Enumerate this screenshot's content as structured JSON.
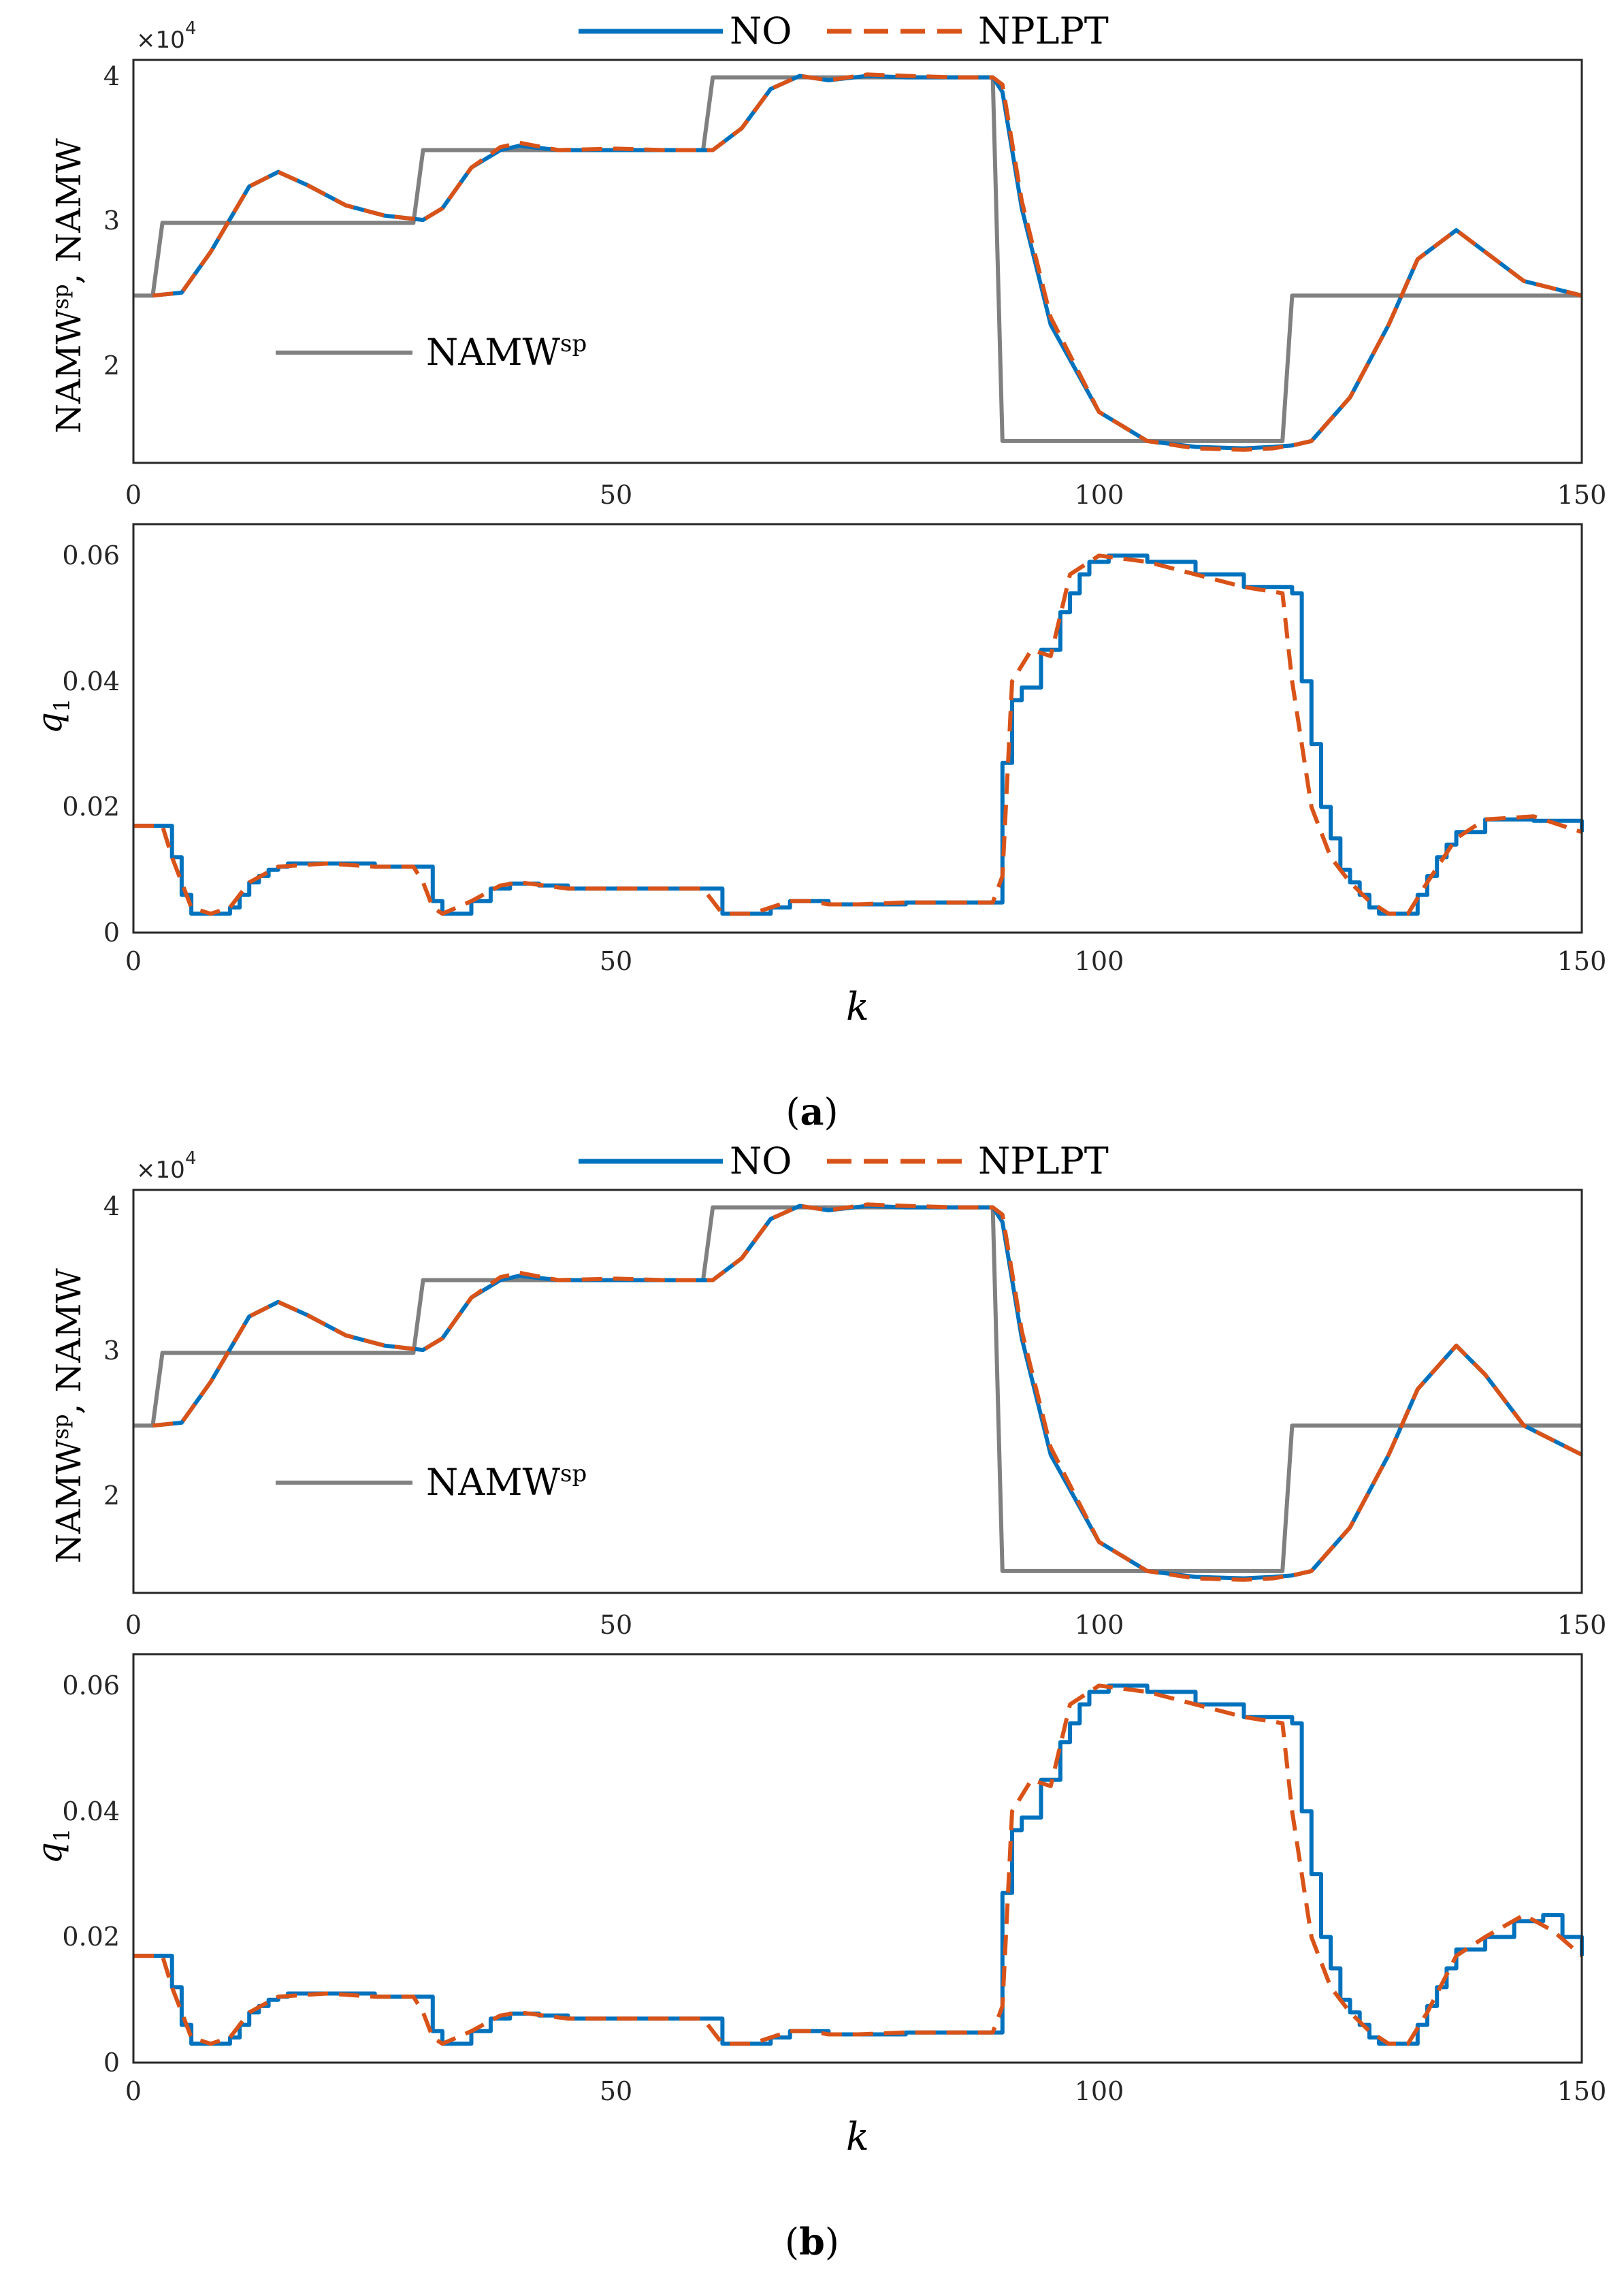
{
  "colors": {
    "no": "#0072BD",
    "nplpt": "#D95319",
    "sp": "#808080",
    "axis": "#262626"
  },
  "legend": {
    "no": "NO",
    "nplpt": "NPLPT"
  },
  "sp_legend": {
    "main": "NAMW",
    "sup": "sp"
  },
  "ylabels": {
    "top_a": "NAMW",
    "top_sup": "sp",
    "top_b": ", NAMW",
    "bottom_main": "q",
    "bottom_sub": "1"
  },
  "xlabel": "k",
  "multiplier": {
    "text": "×10",
    "exp": "4"
  },
  "captions": {
    "a": {
      "open": "(",
      "letter": "a",
      "close": ")"
    },
    "b": {
      "open": "(",
      "letter": "b",
      "close": ")"
    }
  },
  "ticks": {
    "x": [
      "0",
      "50",
      "100",
      "150"
    ],
    "y_top": [
      "2",
      "3",
      "4"
    ],
    "y_bottom": [
      "0",
      "0.02",
      "0.04",
      "0.06"
    ]
  },
  "chart_data": [
    {
      "type": "line",
      "panel": "a-top",
      "xlabel": "",
      "ylabel": "NAMW^sp, NAMW",
      "xlim": [
        0,
        150
      ],
      "ylim": [
        1.35,
        4.12
      ],
      "y_multiplier": "×10^4",
      "series": [
        {
          "name": "NAMW^sp",
          "style": "step",
          "x": [
            0,
            2,
            3,
            29,
            30,
            59,
            60,
            89,
            90,
            119,
            120,
            150
          ],
          "values": [
            2.5,
            2.5,
            3.0,
            3.0,
            3.5,
            3.5,
            4.0,
            4.0,
            1.5,
            1.5,
            2.5,
            2.5
          ]
        },
        {
          "name": "NO",
          "x": [
            2,
            5,
            8,
            12,
            15,
            18,
            22,
            26,
            30,
            32,
            35,
            38,
            40,
            44,
            50,
            55,
            60,
            63,
            66,
            69,
            72,
            76,
            80,
            85,
            88,
            89,
            90,
            92,
            95,
            100,
            105,
            110,
            115,
            118,
            120,
            122,
            126,
            130,
            133,
            137,
            140,
            144,
            150
          ],
          "values": [
            2.5,
            2.52,
            2.8,
            3.25,
            3.35,
            3.26,
            3.12,
            3.05,
            3.02,
            3.1,
            3.38,
            3.5,
            3.53,
            3.5,
            3.5,
            3.5,
            3.5,
            3.65,
            3.92,
            4.01,
            3.98,
            4.01,
            4.0,
            4.0,
            4.0,
            4.0,
            3.9,
            3.1,
            2.3,
            1.7,
            1.5,
            1.46,
            1.45,
            1.46,
            1.47,
            1.5,
            1.8,
            2.3,
            2.75,
            2.95,
            2.8,
            2.6,
            2.5
          ]
        },
        {
          "name": "NPLPT",
          "x": [
            2,
            5,
            8,
            12,
            15,
            18,
            22,
            26,
            30,
            32,
            35,
            38,
            40,
            44,
            50,
            55,
            60,
            63,
            66,
            69,
            72,
            76,
            80,
            85,
            88,
            89,
            90,
            92,
            95,
            100,
            105,
            110,
            115,
            118,
            120,
            122,
            126,
            130,
            133,
            137,
            140,
            144,
            150
          ],
          "values": [
            2.5,
            2.52,
            2.8,
            3.25,
            3.35,
            3.26,
            3.12,
            3.05,
            3.02,
            3.1,
            3.38,
            3.52,
            3.55,
            3.5,
            3.51,
            3.5,
            3.5,
            3.65,
            3.92,
            4.01,
            3.98,
            4.02,
            4.01,
            4.0,
            4.0,
            4.0,
            3.95,
            3.15,
            2.35,
            1.7,
            1.5,
            1.45,
            1.44,
            1.45,
            1.47,
            1.5,
            1.8,
            2.3,
            2.75,
            2.95,
            2.8,
            2.6,
            2.5
          ]
        }
      ]
    },
    {
      "type": "line",
      "panel": "a-bottom",
      "xlabel": "k",
      "ylabel": "q1",
      "xlim": [
        0,
        150
      ],
      "ylim": [
        0,
        0.065
      ],
      "series": [
        {
          "name": "NO",
          "style": "step",
          "x": [
            0,
            4,
            5,
            6,
            9,
            10,
            11,
            12,
            13,
            14,
            15,
            16,
            18,
            22,
            25,
            30,
            31,
            32,
            33,
            35,
            37,
            39,
            42,
            45,
            50,
            55,
            60,
            61,
            62,
            64,
            66,
            68,
            70,
            72,
            75,
            80,
            85,
            90,
            91,
            92,
            94,
            96,
            97,
            98,
            99,
            101,
            105,
            110,
            115,
            120,
            121,
            122,
            123,
            124,
            125,
            126,
            127,
            128,
            129,
            130,
            132,
            133,
            134,
            135,
            136,
            137,
            140,
            145,
            150
          ],
          "values": [
            0.017,
            0.012,
            0.006,
            0.003,
            0.003,
            0.004,
            0.006,
            0.008,
            0.009,
            0.01,
            0.0105,
            0.011,
            0.011,
            0.011,
            0.0105,
            0.0105,
            0.005,
            0.003,
            0.003,
            0.005,
            0.007,
            0.0078,
            0.0075,
            0.007,
            0.007,
            0.007,
            0.007,
            0.003,
            0.003,
            0.003,
            0.004,
            0.005,
            0.005,
            0.0045,
            0.0045,
            0.0048,
            0.0048,
            0.027,
            0.037,
            0.039,
            0.045,
            0.051,
            0.054,
            0.057,
            0.059,
            0.06,
            0.059,
            0.057,
            0.055,
            0.054,
            0.04,
            0.03,
            0.02,
            0.015,
            0.01,
            0.008,
            0.006,
            0.004,
            0.003,
            0.003,
            0.003,
            0.006,
            0.009,
            0.012,
            0.014,
            0.016,
            0.018,
            0.0178,
            0.016
          ]
        },
        {
          "name": "NPLPT",
          "x": [
            0,
            3,
            4,
            5,
            6,
            8,
            10,
            12,
            15,
            20,
            25,
            29,
            30,
            31,
            32,
            35,
            38,
            40,
            45,
            50,
            55,
            59,
            60,
            61,
            64,
            66,
            68,
            70,
            72,
            75,
            80,
            89,
            90,
            91,
            93,
            95,
            97,
            100,
            105,
            110,
            115,
            119,
            120,
            121,
            122,
            124,
            126,
            128,
            130,
            132,
            134,
            137,
            140,
            145,
            150
          ],
          "values": [
            0.017,
            0.017,
            0.012,
            0.008,
            0.004,
            0.003,
            0.004,
            0.008,
            0.0105,
            0.011,
            0.0105,
            0.0105,
            0.008,
            0.004,
            0.003,
            0.005,
            0.0075,
            0.008,
            0.007,
            0.007,
            0.007,
            0.007,
            0.005,
            0.003,
            0.003,
            0.004,
            0.005,
            0.005,
            0.0045,
            0.0045,
            0.0048,
            0.0048,
            0.009,
            0.04,
            0.045,
            0.044,
            0.057,
            0.06,
            0.059,
            0.057,
            0.055,
            0.054,
            0.04,
            0.03,
            0.02,
            0.012,
            0.008,
            0.005,
            0.003,
            0.003,
            0.008,
            0.015,
            0.018,
            0.0185,
            0.016
          ]
        }
      ]
    },
    {
      "type": "line",
      "panel": "b-top",
      "xlabel": "",
      "ylabel": "NAMW^sp, NAMW",
      "xlim": [
        0,
        150
      ],
      "ylim": [
        1.35,
        4.12
      ],
      "y_multiplier": "×10^4",
      "series": [
        {
          "name": "NAMW^sp",
          "style": "step",
          "x": [
            0,
            2,
            3,
            29,
            30,
            59,
            60,
            89,
            90,
            119,
            120,
            150
          ],
          "values": [
            2.5,
            2.5,
            3.0,
            3.0,
            3.5,
            3.5,
            4.0,
            4.0,
            1.5,
            1.5,
            2.5,
            2.5
          ]
        },
        {
          "name": "NO",
          "x": [
            2,
            5,
            8,
            12,
            15,
            18,
            22,
            26,
            30,
            32,
            35,
            38,
            40,
            44,
            50,
            55,
            60,
            63,
            66,
            69,
            72,
            76,
            80,
            85,
            88,
            89,
            90,
            92,
            95,
            100,
            105,
            110,
            115,
            118,
            120,
            122,
            126,
            130,
            133,
            137,
            140,
            144,
            150
          ],
          "values": [
            2.5,
            2.52,
            2.8,
            3.25,
            3.35,
            3.26,
            3.12,
            3.05,
            3.02,
            3.1,
            3.38,
            3.5,
            3.53,
            3.5,
            3.5,
            3.5,
            3.5,
            3.65,
            3.92,
            4.01,
            3.98,
            4.01,
            4.0,
            4.0,
            4.0,
            4.0,
            3.9,
            3.1,
            2.3,
            1.7,
            1.5,
            1.46,
            1.45,
            1.46,
            1.47,
            1.5,
            1.8,
            2.3,
            2.75,
            3.05,
            2.85,
            2.5,
            2.3
          ]
        },
        {
          "name": "NPLPT",
          "x": [
            2,
            5,
            8,
            12,
            15,
            18,
            22,
            26,
            30,
            32,
            35,
            38,
            40,
            44,
            50,
            55,
            60,
            63,
            66,
            69,
            72,
            76,
            80,
            85,
            88,
            89,
            90,
            92,
            95,
            100,
            105,
            110,
            115,
            118,
            120,
            122,
            126,
            130,
            133,
            137,
            140,
            144,
            150
          ],
          "values": [
            2.5,
            2.52,
            2.8,
            3.25,
            3.35,
            3.26,
            3.12,
            3.05,
            3.02,
            3.1,
            3.38,
            3.52,
            3.55,
            3.5,
            3.51,
            3.5,
            3.5,
            3.65,
            3.92,
            4.01,
            3.98,
            4.02,
            4.01,
            4.0,
            4.0,
            4.0,
            3.95,
            3.15,
            2.35,
            1.7,
            1.5,
            1.45,
            1.44,
            1.45,
            1.47,
            1.5,
            1.8,
            2.3,
            2.75,
            3.05,
            2.85,
            2.5,
            2.3
          ]
        }
      ]
    },
    {
      "type": "line",
      "panel": "b-bottom",
      "xlabel": "k",
      "ylabel": "q1",
      "xlim": [
        0,
        150
      ],
      "ylim": [
        0,
        0.065
      ],
      "series": [
        {
          "name": "NO",
          "style": "step",
          "x": [
            0,
            4,
            5,
            6,
            9,
            10,
            11,
            12,
            13,
            14,
            15,
            16,
            18,
            22,
            25,
            30,
            31,
            32,
            33,
            35,
            37,
            39,
            42,
            45,
            50,
            55,
            60,
            61,
            62,
            64,
            66,
            68,
            70,
            72,
            75,
            80,
            85,
            90,
            91,
            92,
            94,
            96,
            97,
            98,
            99,
            101,
            105,
            110,
            115,
            120,
            121,
            122,
            123,
            124,
            125,
            126,
            127,
            128,
            129,
            130,
            132,
            133,
            134,
            135,
            136,
            137,
            140,
            143,
            146,
            148,
            150
          ],
          "values": [
            0.017,
            0.012,
            0.006,
            0.003,
            0.003,
            0.004,
            0.006,
            0.008,
            0.009,
            0.01,
            0.0105,
            0.011,
            0.011,
            0.011,
            0.0105,
            0.0105,
            0.005,
            0.003,
            0.003,
            0.005,
            0.007,
            0.0078,
            0.0075,
            0.007,
            0.007,
            0.007,
            0.007,
            0.003,
            0.003,
            0.003,
            0.004,
            0.005,
            0.005,
            0.0045,
            0.0045,
            0.0048,
            0.0048,
            0.027,
            0.037,
            0.039,
            0.045,
            0.051,
            0.054,
            0.057,
            0.059,
            0.06,
            0.059,
            0.057,
            0.055,
            0.054,
            0.04,
            0.03,
            0.02,
            0.015,
            0.01,
            0.008,
            0.006,
            0.004,
            0.003,
            0.003,
            0.003,
            0.006,
            0.009,
            0.012,
            0.015,
            0.018,
            0.02,
            0.0225,
            0.0235,
            0.02,
            0.017
          ]
        },
        {
          "name": "NPLPT",
          "x": [
            0,
            3,
            4,
            5,
            6,
            8,
            10,
            12,
            15,
            20,
            25,
            29,
            30,
            31,
            32,
            35,
            38,
            40,
            45,
            50,
            55,
            59,
            60,
            61,
            64,
            66,
            68,
            70,
            72,
            75,
            80,
            89,
            90,
            91,
            93,
            95,
            97,
            100,
            105,
            110,
            115,
            119,
            120,
            121,
            122,
            124,
            126,
            128,
            130,
            132,
            134,
            137,
            140,
            144,
            147,
            150
          ],
          "values": [
            0.017,
            0.017,
            0.012,
            0.008,
            0.004,
            0.003,
            0.004,
            0.008,
            0.0105,
            0.011,
            0.0105,
            0.0105,
            0.008,
            0.004,
            0.003,
            0.005,
            0.0075,
            0.008,
            0.007,
            0.007,
            0.007,
            0.007,
            0.005,
            0.003,
            0.003,
            0.004,
            0.005,
            0.005,
            0.0045,
            0.0045,
            0.0048,
            0.0048,
            0.009,
            0.04,
            0.045,
            0.044,
            0.057,
            0.06,
            0.059,
            0.057,
            0.055,
            0.054,
            0.04,
            0.03,
            0.02,
            0.012,
            0.008,
            0.005,
            0.003,
            0.003,
            0.008,
            0.017,
            0.02,
            0.0235,
            0.021,
            0.017
          ]
        }
      ]
    }
  ]
}
